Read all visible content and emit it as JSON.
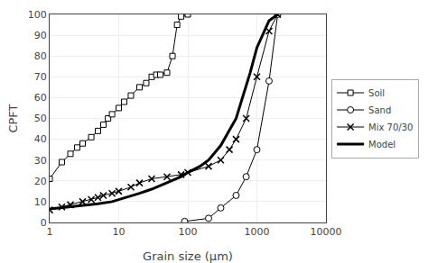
{
  "chart_data": {
    "type": "line",
    "xlabel": "Grain size (μm)",
    "ylabel": "CPFT",
    "log": "x",
    "grid": true,
    "legend": "right",
    "xlim": [
      1,
      10000
    ],
    "xticks": [
      1,
      10,
      100,
      1000,
      10000
    ],
    "ylim": [
      0,
      100
    ],
    "yticks": [
      0,
      10,
      20,
      30,
      40,
      50,
      60,
      70,
      80,
      90,
      100
    ],
    "series": [
      {
        "name": "Soil",
        "color": "#000000",
        "marker": "square",
        "line_style": "solid",
        "x": [
          1,
          1.5,
          2,
          2.5,
          3,
          4,
          5,
          6,
          7,
          8,
          10,
          12,
          15,
          20,
          25,
          30,
          35,
          40,
          50,
          60,
          70,
          80,
          100
        ],
        "values": [
          21,
          29,
          33,
          36,
          38,
          41,
          44,
          47,
          50,
          52,
          55,
          58,
          61,
          65,
          67,
          70,
          71,
          71,
          72,
          80,
          95,
          99,
          100
        ]
      },
      {
        "name": "Sand",
        "color": "#000000",
        "marker": "circle",
        "line_style": "solid",
        "x": [
          90,
          200,
          300,
          500,
          700,
          1000,
          1500,
          2000
        ],
        "values": [
          0.5,
          2,
          7,
          13,
          22,
          35,
          68,
          100
        ]
      },
      {
        "name": "Mix 70/30",
        "color": "#000000",
        "marker": "x",
        "line_style": "solid",
        "x": [
          1,
          1.5,
          2,
          3,
          4,
          5,
          6,
          8,
          10,
          15,
          20,
          30,
          50,
          80,
          100,
          200,
          300,
          400,
          500,
          700,
          1000,
          1500,
          2000
        ],
        "values": [
          6,
          7.5,
          8.5,
          10,
          11,
          12,
          13,
          14,
          15,
          17,
          19,
          21,
          22,
          23,
          24,
          27,
          30,
          35,
          40,
          50,
          70,
          92,
          100
        ]
      },
      {
        "name": "Model",
        "color": "#000000",
        "line_style": "solid",
        "x": [
          1,
          2,
          3,
          5,
          8,
          10,
          15,
          20,
          30,
          50,
          80,
          100,
          150,
          200,
          300,
          500,
          800,
          1000,
          1500,
          2000
        ],
        "values": [
          6.5,
          7.5,
          8,
          9,
          10,
          11,
          12.5,
          14,
          16,
          19,
          22,
          24,
          27,
          30,
          37,
          50,
          72,
          84,
          97,
          100
        ]
      }
    ]
  }
}
